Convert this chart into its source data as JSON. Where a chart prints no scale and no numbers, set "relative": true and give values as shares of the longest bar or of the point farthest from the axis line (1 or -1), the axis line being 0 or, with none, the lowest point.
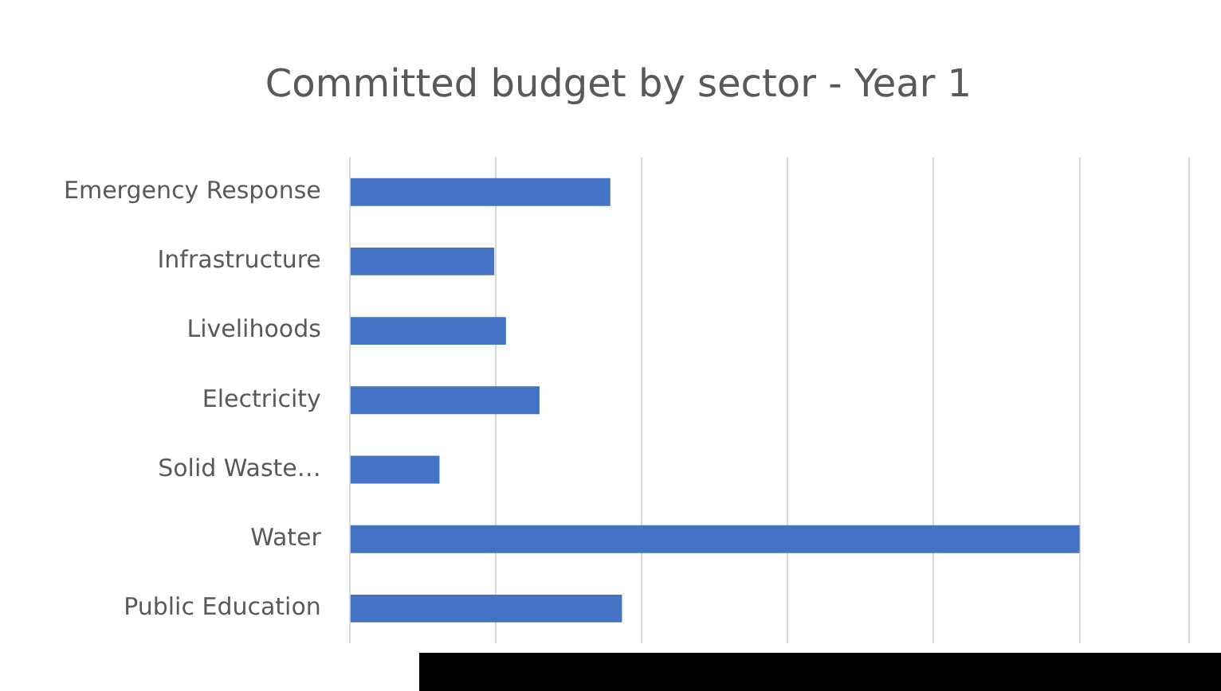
{
  "chart_data": {
    "type": "bar",
    "orientation": "horizontal",
    "relative": true,
    "title": "Committed budget by sector - Year 1",
    "categories": [
      "Emergency Response",
      "Infrastructure",
      "Livelihoods",
      "Electricity",
      "Solid Waste…",
      "Water",
      "Public Education"
    ],
    "values": [
      0.357,
      0.198,
      0.214,
      0.26,
      0.123,
      1,
      0.373
    ],
    "color": "#4472c4",
    "grid": "x"
  }
}
